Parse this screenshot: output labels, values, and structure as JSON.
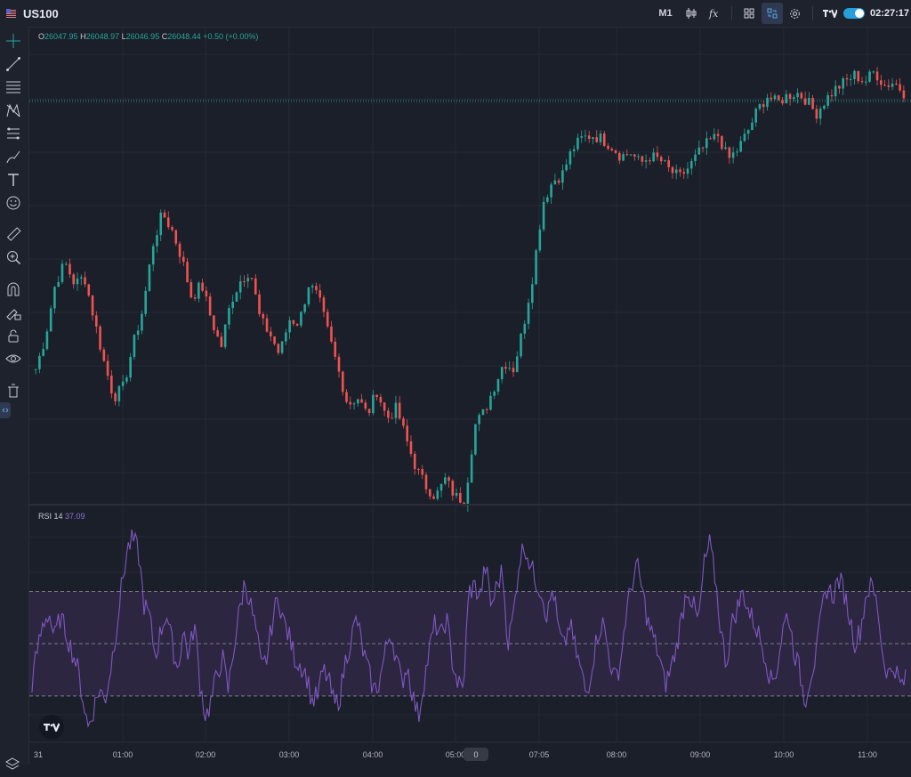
{
  "header": {
    "symbol": "US100",
    "timeframe": "M1",
    "clock": "02:27:17"
  },
  "icons": {
    "flag": "flag-icon",
    "candles": "candles-icon",
    "indicators": "fx-icon",
    "layout": "layout-icon",
    "sync": "sync-icon",
    "settings": "gear-icon",
    "brand": "tradingview-logo",
    "toggle": "toggle-switch",
    "tools": [
      "crosshair-icon",
      "trend-line-icon",
      "fib-icon",
      "pattern-icon",
      "projection-icon",
      "brush-icon",
      "text-icon",
      "emoji-icon",
      "ruler-icon",
      "zoom-icon",
      "magnet-icon",
      "lock-drawing-icon",
      "unlock-icon",
      "eye-icon",
      "trash-icon"
    ],
    "layers": "layers-icon"
  },
  "legend": {
    "o_label": "O",
    "o_value": "26047.95",
    "h_label": "H",
    "h_value": "26048.97",
    "l_label": "L",
    "l_value": "26046.95",
    "c_label": "C",
    "c_value": "26048.44",
    "change": "+0.50 (+0.00%)"
  },
  "rsi": {
    "label": "RSI 14",
    "value": "37.09"
  },
  "time_axis": {
    "labels": [
      "31",
      "01:00",
      "02:00",
      "03:00",
      "04:00",
      "05:00",
      "07:05",
      "08:00",
      "09:00",
      "10:00",
      "11:00"
    ],
    "scroll_badge": "0"
  },
  "colors": {
    "up": "#26a69a",
    "down": "#ef5350",
    "rsi_line": "#7e57c2",
    "rsi_band": "#2c2640",
    "grid": "#252a36",
    "bg": "#1b1f29",
    "price_line": "#26a69a"
  },
  "chart_data": [
    {
      "type": "candlestick",
      "title": "",
      "x_labels": [
        "31",
        "01:00",
        "02:00",
        "03:00",
        "04:00",
        "05:00",
        "07:05",
        "08:00",
        "09:00",
        "10:00",
        "11:00"
      ],
      "close_path": [
        [
          "31",
          0.38
        ],
        [
          "31",
          0.47
        ],
        [
          "31",
          0.62
        ],
        [
          "31",
          0.68
        ],
        [
          "31",
          0.62
        ],
        [
          "31",
          0.64
        ],
        [
          "01:00",
          0.52
        ],
        [
          "01:00",
          0.4
        ],
        [
          "01:00",
          0.3
        ],
        [
          "01:00",
          0.33
        ],
        [
          "01:00",
          0.45
        ],
        [
          "01:00",
          0.55
        ],
        [
          "01:00",
          0.73
        ],
        [
          "01:00",
          0.82
        ],
        [
          "01:00",
          0.77
        ],
        [
          "01:00",
          0.69
        ],
        [
          "02:00",
          0.58
        ],
        [
          "02:00",
          0.62
        ],
        [
          "02:00",
          0.52
        ],
        [
          "02:00",
          0.44
        ],
        [
          "02:00",
          0.57
        ],
        [
          "02:00",
          0.63
        ],
        [
          "02:00",
          0.66
        ],
        [
          "02:00",
          0.52
        ],
        [
          "02:00",
          0.48
        ],
        [
          "02:00",
          0.42
        ],
        [
          "03:00",
          0.52
        ],
        [
          "03:00",
          0.51
        ],
        [
          "03:00",
          0.62
        ],
        [
          "03:00",
          0.58
        ],
        [
          "03:00",
          0.48
        ],
        [
          "03:00",
          0.38
        ],
        [
          "03:00",
          0.28
        ],
        [
          "03:00",
          0.3
        ],
        [
          "03:00",
          0.25
        ],
        [
          "03:00",
          0.32
        ],
        [
          "04:00",
          0.24
        ],
        [
          "04:00",
          0.27
        ],
        [
          "04:00",
          0.18
        ],
        [
          "04:00",
          0.1
        ],
        [
          "04:00",
          0.05
        ],
        [
          "04:00",
          0.02
        ],
        [
          "04:00",
          0.07
        ],
        [
          "04:00",
          0.02
        ],
        [
          "04:00",
          0.01
        ],
        [
          "05:00",
          0.22
        ],
        [
          "05:00",
          0.26
        ],
        [
          "05:00",
          0.33
        ],
        [
          "05:00",
          0.4
        ],
        [
          "05:00",
          0.38
        ],
        [
          "05:00",
          0.5
        ],
        [
          "05:00",
          0.65
        ],
        [
          "05:00",
          0.85
        ],
        [
          "05:00",
          0.91
        ],
        [
          "05:00",
          0.93
        ],
        [
          "07:05",
          1.0
        ],
        [
          "07:05",
          1.03
        ],
        [
          "07:05",
          1.04
        ],
        [
          "07:05",
          1.03
        ],
        [
          "07:05",
          1.01
        ],
        [
          "07:05",
          0.98
        ],
        [
          "07:05",
          0.99
        ],
        [
          "08:00",
          0.96
        ],
        [
          "08:00",
          0.98
        ],
        [
          "08:00",
          0.97
        ],
        [
          "08:00",
          0.94
        ],
        [
          "08:00",
          0.92
        ],
        [
          "08:00",
          0.95
        ],
        [
          "08:00",
          0.99
        ],
        [
          "08:00",
          1.02
        ],
        [
          "09:00",
          1.04
        ],
        [
          "09:00",
          0.97
        ],
        [
          "09:00",
          1.0
        ],
        [
          "09:00",
          1.05
        ],
        [
          "09:00",
          1.11
        ],
        [
          "09:00",
          1.15
        ],
        [
          "09:00",
          1.13
        ],
        [
          "10:00",
          1.15
        ],
        [
          "10:00",
          1.16
        ],
        [
          "10:00",
          1.14
        ],
        [
          "10:00",
          1.1
        ],
        [
          "10:00",
          1.14
        ],
        [
          "10:00",
          1.17
        ],
        [
          "10:00",
          1.19
        ],
        [
          "11:00",
          1.21
        ],
        [
          "11:00",
          1.19
        ],
        [
          "11:00",
          1.22
        ],
        [
          "11:00",
          1.18
        ],
        [
          "11:00",
          1.19
        ],
        [
          "11:00",
          1.16
        ]
      ]
    },
    {
      "type": "line",
      "title": "RSI 14",
      "levels": [
        30,
        50,
        70
      ],
      "ylim": [
        15,
        95
      ],
      "last_value": 37.09,
      "values": [
        35,
        48,
        58,
        62,
        52,
        60,
        55,
        48,
        42,
        30,
        18,
        25,
        33,
        28,
        40,
        55,
        72,
        86,
        90,
        85,
        65,
        60,
        45,
        55,
        62,
        50,
        40,
        55,
        45,
        58,
        35,
        22,
        28,
        38,
        45,
        32,
        48,
        62,
        74,
        65,
        55,
        40,
        45,
        60,
        68,
        58,
        52,
        44,
        42,
        38,
        28,
        30,
        40,
        36,
        26,
        30,
        44,
        52,
        60,
        48,
        40,
        32,
        35,
        46,
        55,
        45,
        35,
        42,
        30,
        22,
        36,
        48,
        58,
        52,
        60,
        44,
        35,
        32,
        70,
        72,
        68,
        80,
        64,
        72,
        78,
        50,
        62,
        82,
        88,
        80,
        74,
        70,
        60,
        72,
        55,
        48,
        58,
        48,
        40,
        30,
        42,
        54,
        58,
        46,
        36,
        42,
        60,
        72,
        80,
        70,
        58,
        52,
        45,
        34,
        40,
        48,
        60,
        72,
        65,
        58,
        80,
        88,
        75,
        55,
        42,
        58,
        64,
        70,
        62,
        58,
        52,
        45,
        35,
        40,
        55,
        62,
        48,
        40,
        28,
        38,
        45,
        62,
        72,
        68,
        75,
        70,
        60,
        50,
        56,
        70,
        72,
        64,
        44,
        38,
        42,
        34,
        36
      ]
    }
  ]
}
